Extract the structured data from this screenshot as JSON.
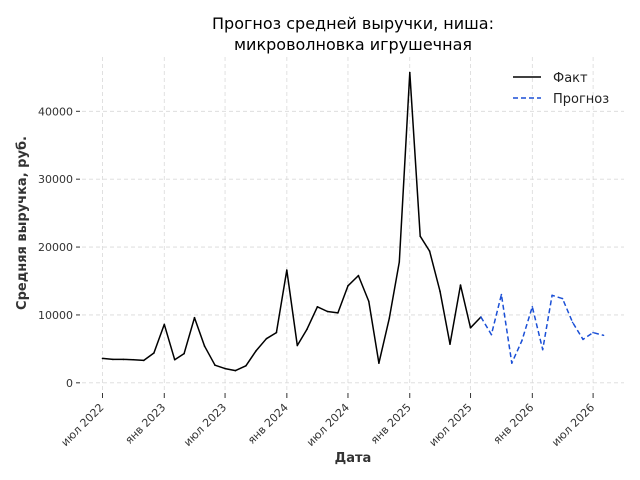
{
  "chart_data": {
    "type": "line",
    "title_lines": [
      "Прогноз средней выручки, ниша:",
      "микроволновка игрушечная"
    ],
    "xlabel": "Дата",
    "ylabel": "Средняя выручка, руб.",
    "ylim": [
      -1500,
      48000
    ],
    "yticks": [
      0,
      10000,
      20000,
      30000,
      40000
    ],
    "xlim": [
      "2022-05-01",
      "2026-10-01"
    ],
    "xticks": [
      {
        "date": "2022-07-01",
        "label": "июл 2022"
      },
      {
        "date": "2023-01-01",
        "label": "янв 2023"
      },
      {
        "date": "2023-07-01",
        "label": "июл 2023"
      },
      {
        "date": "2024-01-01",
        "label": "янв 2024"
      },
      {
        "date": "2024-07-01",
        "label": "июл 2024"
      },
      {
        "date": "2025-01-01",
        "label": "янв 2025"
      },
      {
        "date": "2025-07-01",
        "label": "июл 2025"
      },
      {
        "date": "2026-01-01",
        "label": "янв 2026"
      },
      {
        "date": "2026-07-01",
        "label": "июл 2026"
      }
    ],
    "grid": true,
    "legend_position": "top-right",
    "series": [
      {
        "name": "Факт",
        "color": "#000000",
        "style": "solid",
        "points": [
          [
            "2022-07-01",
            3600
          ],
          [
            "2022-08-01",
            3450
          ],
          [
            "2022-09-01",
            3450
          ],
          [
            "2022-10-01",
            3400
          ],
          [
            "2022-11-01",
            3300
          ],
          [
            "2022-12-01",
            4400
          ],
          [
            "2023-01-01",
            8600
          ],
          [
            "2023-02-01",
            3400
          ],
          [
            "2023-03-01",
            4300
          ],
          [
            "2023-04-01",
            9600
          ],
          [
            "2023-05-01",
            5400
          ],
          [
            "2023-06-01",
            2600
          ],
          [
            "2023-07-01",
            2100
          ],
          [
            "2023-08-01",
            1800
          ],
          [
            "2023-09-01",
            2500
          ],
          [
            "2023-10-01",
            4700
          ],
          [
            "2023-11-01",
            6500
          ],
          [
            "2023-12-01",
            7400
          ],
          [
            "2024-01-01",
            16600
          ],
          [
            "2024-02-01",
            5500
          ],
          [
            "2024-03-01",
            7900
          ],
          [
            "2024-04-01",
            11200
          ],
          [
            "2024-05-01",
            10500
          ],
          [
            "2024-06-01",
            10300
          ],
          [
            "2024-07-01",
            14300
          ],
          [
            "2024-08-01",
            15800
          ],
          [
            "2024-09-01",
            12000
          ],
          [
            "2024-10-01",
            2900
          ],
          [
            "2024-11-01",
            9500
          ],
          [
            "2024-12-01",
            17800
          ],
          [
            "2025-01-01",
            45700
          ],
          [
            "2025-02-01",
            21600
          ],
          [
            "2025-03-01",
            19400
          ],
          [
            "2025-04-01",
            13500
          ],
          [
            "2025-05-01",
            5700
          ],
          [
            "2025-06-01",
            14400
          ],
          [
            "2025-07-01",
            8100
          ],
          [
            "2025-08-01",
            9700
          ]
        ]
      },
      {
        "name": "Прогноз",
        "color": "#1a4fd6",
        "style": "dashed",
        "points": [
          [
            "2025-08-01",
            9700
          ],
          [
            "2025-09-01",
            7100
          ],
          [
            "2025-10-01",
            13000
          ],
          [
            "2025-11-01",
            2900
          ],
          [
            "2025-12-01",
            6200
          ],
          [
            "2026-01-01",
            11200
          ],
          [
            "2026-02-01",
            4900
          ],
          [
            "2026-03-01",
            12900
          ],
          [
            "2026-04-01",
            12400
          ],
          [
            "2026-05-01",
            8900
          ],
          [
            "2026-06-01",
            6400
          ],
          [
            "2026-07-01",
            7400
          ],
          [
            "2026-08-01",
            7000
          ]
        ]
      }
    ]
  }
}
